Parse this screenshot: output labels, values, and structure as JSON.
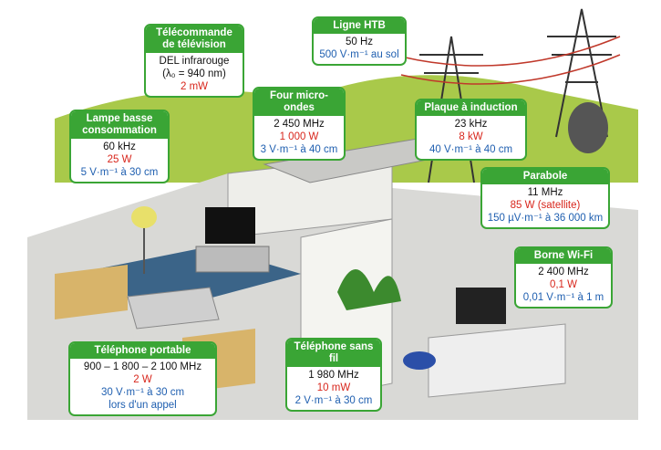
{
  "callouts": [
    {
      "title": "Télécommande\nde télévision",
      "lines": [
        "DEL infrarouge",
        "(λ₀ = 940 nm)",
        "2 mW"
      ]
    },
    {
      "title": "Ligne HTB",
      "lines": [
        "50 Hz",
        "500 V·m⁻¹ au sol"
      ]
    },
    {
      "title": "Four micro-ondes",
      "lines": [
        "2 450 MHz",
        "1 000 W",
        "3 V·m⁻¹ à 40 cm"
      ]
    },
    {
      "title": "Lampe basse\nconsommation",
      "lines": [
        "60 kHz",
        "25 W",
        "5 V·m⁻¹ à 30 cm"
      ]
    },
    {
      "title": "Plaque à induction",
      "lines": [
        "23 kHz",
        "8 kW",
        "40 V·m⁻¹ à 40 cm"
      ]
    },
    {
      "title": "Parabole",
      "lines": [
        "11 MHz",
        "85 W (satellite)",
        "150 µV·m⁻¹ à 36 000 km"
      ]
    },
    {
      "title": "Borne Wi-Fi",
      "lines": [
        "2 400 MHz",
        "0,1 W",
        "0,01 V·m⁻¹ à 1 m"
      ]
    },
    {
      "title": "Téléphone portable",
      "lines": [
        "900 – 1 800 – 2 100 MHz",
        "2 W",
        "30 V·m⁻¹ à 30 cm",
        "lors d'un appel"
      ]
    },
    {
      "title": "Téléphone sans fil",
      "lines": [
        "1 980 MHz",
        "10 mW",
        "2 V·m⁻¹ à 30 cm"
      ]
    }
  ]
}
